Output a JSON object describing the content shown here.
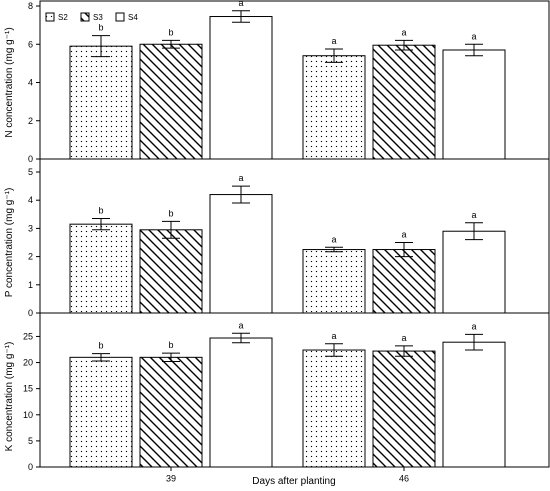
{
  "chart_data": {
    "type": "bar",
    "xlabel": "Days after planting",
    "categories": [
      "39",
      "46"
    ],
    "legend": {
      "placement": "top-left",
      "entries": [
        {
          "name": "S2",
          "pattern": "dots"
        },
        {
          "name": "S3",
          "pattern": "diagonal"
        },
        {
          "name": "S4",
          "pattern": "open"
        }
      ]
    },
    "panels": [
      {
        "ylabel": "N concentration (mg g⁻¹)",
        "ylim": [
          0,
          8
        ],
        "yticks": [
          0,
          2,
          4,
          6,
          8
        ],
        "series": [
          {
            "name": "S2",
            "values": [
              5.9,
              5.4
            ],
            "errors": [
              0.55,
              0.35
            ],
            "letters": [
              "b",
              "a"
            ]
          },
          {
            "name": "S3",
            "values": [
              6.0,
              5.95
            ],
            "errors": [
              0.2,
              0.25
            ],
            "letters": [
              "b",
              "a"
            ]
          },
          {
            "name": "S4",
            "values": [
              7.45,
              5.7
            ],
            "errors": [
              0.3,
              0.3
            ],
            "letters": [
              "a",
              "a"
            ]
          }
        ]
      },
      {
        "ylabel": "P concentration (mg g⁻¹)",
        "ylim": [
          0,
          5
        ],
        "yticks": [
          0,
          1,
          2,
          3,
          4,
          5
        ],
        "series": [
          {
            "name": "S2",
            "values": [
              3.15,
              2.25
            ],
            "errors": [
              0.2,
              0.08
            ],
            "letters": [
              "b",
              "a"
            ]
          },
          {
            "name": "S3",
            "values": [
              2.95,
              2.25
            ],
            "errors": [
              0.3,
              0.25
            ],
            "letters": [
              "b",
              "a"
            ]
          },
          {
            "name": "S4",
            "values": [
              4.2,
              2.9
            ],
            "errors": [
              0.3,
              0.3
            ],
            "letters": [
              "a",
              "a"
            ]
          }
        ]
      },
      {
        "ylabel": "K concentration (mg g⁻¹)",
        "ylim": [
          0,
          27
        ],
        "yticks": [
          0,
          5,
          10,
          15,
          20,
          25
        ],
        "series": [
          {
            "name": "S2",
            "values": [
              21.0,
              22.4
            ],
            "errors": [
              0.7,
              1.2
            ],
            "letters": [
              "b",
              "a"
            ]
          },
          {
            "name": "S3",
            "values": [
              21.0,
              22.2
            ],
            "errors": [
              0.8,
              1.0
            ],
            "letters": [
              "b",
              "a"
            ]
          },
          {
            "name": "S4",
            "values": [
              24.7,
              23.9
            ],
            "errors": [
              0.9,
              1.5
            ],
            "letters": [
              "a",
              "a"
            ]
          }
        ]
      }
    ]
  }
}
